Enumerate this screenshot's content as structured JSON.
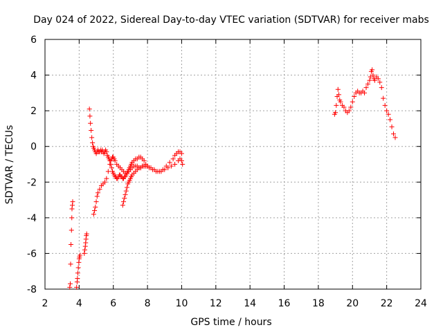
{
  "chart_data": {
    "type": "scatter",
    "title": "Day 024 of 2022, Sidereal Day-to-day VTEC variation (SDTVAR) for receiver mabs",
    "xlabel": "GPS time / hours",
    "ylabel": "SDTVAR / TECUs",
    "xlim": [
      2,
      24
    ],
    "ylim": [
      -8,
      6
    ],
    "xticks": [
      2,
      4,
      6,
      8,
      10,
      12,
      14,
      16,
      18,
      20,
      22,
      24
    ],
    "yticks": [
      -8,
      -6,
      -4,
      -2,
      0,
      2,
      4,
      6
    ],
    "grid": true,
    "marker": "+",
    "color": "#ff0000",
    "series": [
      {
        "x": [
          3.45,
          3.48,
          3.5,
          3.52,
          3.55,
          3.57,
          3.58,
          3.6,
          3.62,
          3.85,
          3.88,
          3.9,
          3.92,
          3.95,
          3.98,
          4.0,
          4.02,
          4.05,
          4.3,
          4.33,
          4.36,
          4.38,
          4.4,
          4.42,
          4.44,
          4.6,
          4.63,
          4.66,
          4.7,
          4.74,
          4.78,
          4.82,
          4.86,
          4.9,
          4.95,
          5.0,
          5.05,
          5.1,
          5.15,
          5.2,
          5.25,
          5.3,
          5.35,
          5.4,
          5.45,
          5.5,
          5.55,
          5.6,
          5.65,
          5.7,
          5.75,
          5.8,
          5.85,
          5.9,
          5.95,
          6.0,
          6.05,
          6.1,
          6.15,
          6.2,
          6.25,
          6.3,
          6.35,
          6.4,
          6.45,
          6.5,
          6.55,
          6.6,
          6.65,
          6.7,
          6.75,
          6.8,
          6.85,
          6.9,
          6.95,
          7.0,
          7.05,
          7.1,
          7.2,
          7.3,
          7.4,
          7.5,
          7.6,
          7.7,
          7.8,
          7.9,
          8.0,
          8.1,
          8.3,
          8.5,
          8.7,
          8.9,
          9.1,
          9.3,
          9.5,
          9.6,
          9.7,
          9.8,
          9.9,
          10.0,
          4.85,
          4.9,
          4.95,
          5.0,
          5.05,
          5.1,
          5.2,
          5.3,
          5.4,
          5.5,
          5.6,
          5.7,
          5.8,
          5.85,
          5.9,
          5.95,
          6.0,
          6.05,
          6.1,
          6.2,
          6.3,
          6.4,
          6.5,
          6.6,
          6.7,
          6.8,
          6.9,
          7.0,
          7.1,
          7.2,
          7.3,
          7.4,
          7.5,
          7.6,
          7.7,
          7.8,
          7.9,
          8.0,
          6.55,
          6.6,
          6.65,
          6.7,
          6.75,
          6.8,
          6.85,
          6.9,
          6.95,
          7.0,
          7.05,
          7.1,
          7.2,
          7.3,
          7.4,
          7.5,
          7.6,
          7.7,
          7.8,
          7.9,
          8.0,
          8.2,
          8.4,
          8.6,
          8.8,
          9.0,
          9.2,
          9.4,
          9.6,
          9.8,
          9.9,
          10.0,
          10.05,
          18.95,
          19.0,
          19.05,
          19.1,
          19.15,
          19.2,
          19.25,
          19.3,
          19.4,
          19.5,
          19.6,
          19.7,
          19.8,
          19.9,
          20.0,
          20.1,
          20.2,
          20.3,
          20.4,
          20.5,
          20.6,
          20.7,
          20.8,
          20.9,
          21.0,
          21.05,
          21.1,
          21.15,
          21.2,
          21.25,
          21.3,
          21.4,
          21.5,
          21.6,
          21.7,
          21.8,
          21.9,
          22.0,
          22.1,
          22.2,
          22.3,
          22.4,
          22.5
        ],
        "y": [
          -7.9,
          -7.7,
          -6.6,
          -5.5,
          -4.7,
          -4.0,
          -3.5,
          -3.3,
          -3.1,
          -7.9,
          -7.6,
          -7.4,
          -7.1,
          -6.8,
          -6.5,
          -6.3,
          -6.2,
          -6.1,
          -6.0,
          -5.8,
          -5.6,
          -5.4,
          -5.2,
          -5.0,
          -4.9,
          2.1,
          1.7,
          1.3,
          0.9,
          0.5,
          0.2,
          0.0,
          -0.1,
          -0.2,
          -0.3,
          -0.4,
          -0.3,
          -0.2,
          -0.3,
          -0.3,
          -0.2,
          -0.3,
          -0.2,
          -0.3,
          -0.4,
          -0.3,
          -0.2,
          -0.3,
          -0.5,
          -0.6,
          -0.7,
          -0.8,
          -1.0,
          -1.2,
          -1.4,
          -1.5,
          -1.6,
          -1.7,
          -1.7,
          -1.8,
          -1.8,
          -1.7,
          -1.6,
          -1.6,
          -1.7,
          -1.7,
          -1.8,
          -1.8,
          -1.7,
          -1.7,
          -1.6,
          -1.5,
          -1.4,
          -1.3,
          -1.2,
          -1.1,
          -1.0,
          -0.9,
          -0.8,
          -0.7,
          -0.7,
          -0.6,
          -0.6,
          -0.7,
          -0.8,
          -1.0,
          -1.1,
          -1.2,
          -1.3,
          -1.4,
          -1.4,
          -1.3,
          -1.1,
          -0.9,
          -0.7,
          -0.5,
          -0.4,
          -0.3,
          -0.3,
          -0.4,
          -3.8,
          -3.6,
          -3.4,
          -3.1,
          -2.8,
          -2.6,
          -2.4,
          -2.2,
          -2.1,
          -2.0,
          -1.8,
          -1.4,
          -1.0,
          -0.8,
          -0.7,
          -0.6,
          -0.6,
          -0.7,
          -0.8,
          -1.0,
          -1.1,
          -1.2,
          -1.3,
          -1.4,
          -1.5,
          -1.5,
          -1.4,
          -1.3,
          -1.2,
          -1.1,
          -1.1,
          -1.1,
          -1.2,
          -1.2,
          -1.1,
          -1.1,
          -1.1,
          -1.1,
          -3.3,
          -3.1,
          -2.9,
          -2.7,
          -2.5,
          -2.3,
          -2.1,
          -2.0,
          -1.9,
          -1.8,
          -1.7,
          -1.6,
          -1.5,
          -1.4,
          -1.3,
          -1.2,
          -1.2,
          -1.1,
          -1.1,
          -1.1,
          -1.1,
          -1.2,
          -1.3,
          -1.4,
          -1.4,
          -1.3,
          -1.2,
          -1.1,
          -1.0,
          -0.8,
          -0.7,
          -0.8,
          -1.0,
          1.8,
          1.9,
          2.3,
          2.8,
          3.2,
          2.9,
          2.6,
          2.5,
          2.3,
          2.2,
          2.0,
          1.9,
          2.0,
          2.2,
          2.5,
          2.8,
          3.0,
          3.1,
          3.0,
          3.0,
          3.1,
          3.0,
          3.3,
          3.5,
          3.7,
          3.9,
          4.2,
          4.3,
          4.0,
          3.8,
          3.7,
          3.9,
          3.8,
          3.6,
          3.3,
          2.7,
          2.3,
          2.0,
          1.8,
          1.5,
          1.1,
          0.7,
          0.5
        ]
      }
    ]
  }
}
